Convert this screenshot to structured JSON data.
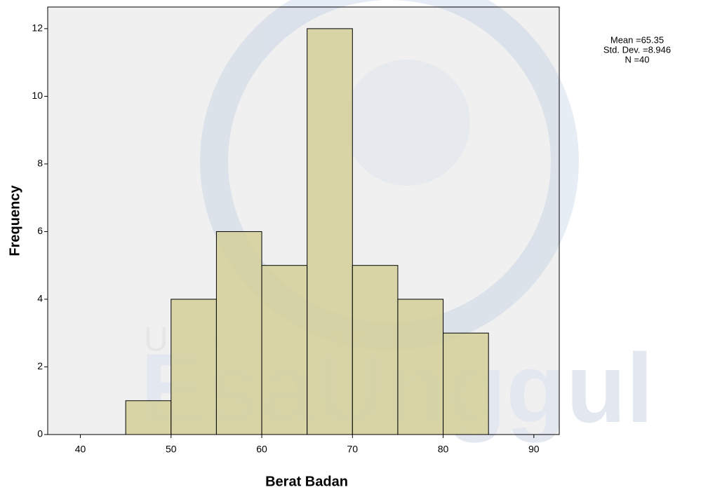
{
  "chart_data": {
    "type": "histogram",
    "xlabel": "Berat Badan",
    "ylabel": "Frequency",
    "bins": [
      45,
      50,
      55,
      60,
      65,
      70,
      75,
      80,
      85
    ],
    "counts": [
      1,
      4,
      6,
      5,
      12,
      5,
      4,
      3
    ],
    "color": "#d4cf99",
    "xlim": [
      36.4,
      92.8
    ],
    "xticks": [
      40,
      50,
      60,
      70,
      80,
      90
    ],
    "ylim": [
      0,
      12.64
    ],
    "yticks": [
      0,
      2,
      4,
      6,
      8,
      10,
      12
    ],
    "annotations": [
      "Mean =65.35",
      "Std. Dev. =8.946",
      "N =40"
    ],
    "watermark": [
      "Universitas",
      "EsaUnggul"
    ]
  }
}
